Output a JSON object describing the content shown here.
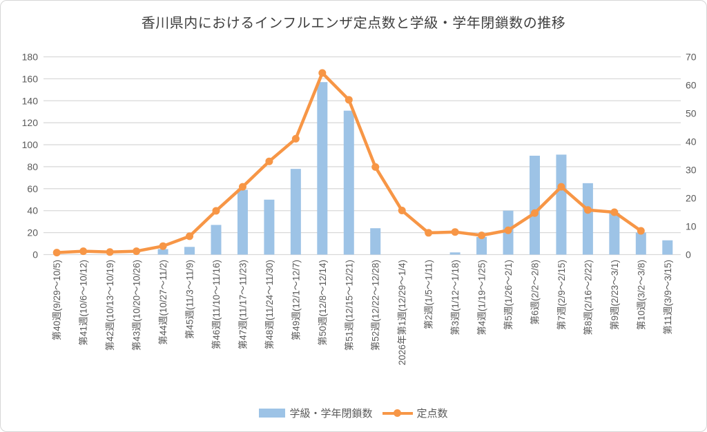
{
  "title": "香川県内におけるインフルエンザ定点数と学級・学年閉鎖数の推移",
  "colors": {
    "bar": "#9DC3E6",
    "line": "#F79646",
    "grid": "#D9D9D9",
    "axis_text": "#595959",
    "title_text": "#3F3F3F"
  },
  "legend": {
    "bar_label": "学級・学年閉鎖数",
    "line_label": "定点数"
  },
  "chart_data": {
    "type": "bar",
    "subtype": "combo-bar-line-dual-axis",
    "title": "香川県内におけるインフルエンザ定点数と学級・学年閉鎖数の推移",
    "xlabel": "",
    "ylabel_left": "",
    "ylabel_right": "",
    "grid": true,
    "legend_position": "bottom",
    "categories": [
      "第40週(9/29～10/5)",
      "第41週(10/6～10/12)",
      "第42週(10/13～10/19)",
      "第43週(10/20～10/26)",
      "第44週(10/27～11/2)",
      "第45週(11/3～11/9)",
      "第46週(11/10～11/16)",
      "第47週(11/17～11/23)",
      "第48週(11/24～11/30)",
      "第49週(12/1～12/7)",
      "第50週(12/8～12/14)",
      "第51週(12/15～12/21)",
      "第52週(12/22～12/28)",
      "2026年第1週(12/29～1/4)",
      "第2週(1/5～1/11)",
      "第3週(1/12～1/18)",
      "第4週(1/19～1/25)",
      "第5週(1/26～2/1)",
      "第6週(2/2～2/8)",
      "第7週(2/9～2/15)",
      "第8週(2/16～2/22)",
      "第9週(2/23～3/1)",
      "第10週(3/2～3/8)",
      "第11週(3/9～3/15)"
    ],
    "series": [
      {
        "name": "学級・学年閉鎖数",
        "type": "bar",
        "axis": "left",
        "values": [
          0,
          0,
          0,
          0,
          5,
          7,
          27,
          59,
          50,
          78,
          157,
          131,
          24,
          0,
          0,
          2,
          16,
          40,
          90,
          91,
          65,
          38,
          20,
          13
        ]
      },
      {
        "name": "定点数",
        "type": "line",
        "axis": "right",
        "values": [
          0.7,
          1.2,
          0.9,
          1.2,
          3,
          6.5,
          15.5,
          24,
          33,
          41,
          64.3,
          54.8,
          31,
          15.6,
          7.7,
          8,
          6.8,
          8.6,
          14.7,
          24,
          15.8,
          15,
          8.4,
          null
        ]
      }
    ],
    "left_axis": {
      "range": [
        0,
        180
      ],
      "ticks": [
        0,
        20,
        40,
        60,
        80,
        100,
        120,
        140,
        160,
        180
      ]
    },
    "right_axis": {
      "range": [
        0,
        70
      ],
      "ticks": [
        0,
        10,
        20,
        30,
        40,
        50,
        60,
        70
      ]
    }
  }
}
